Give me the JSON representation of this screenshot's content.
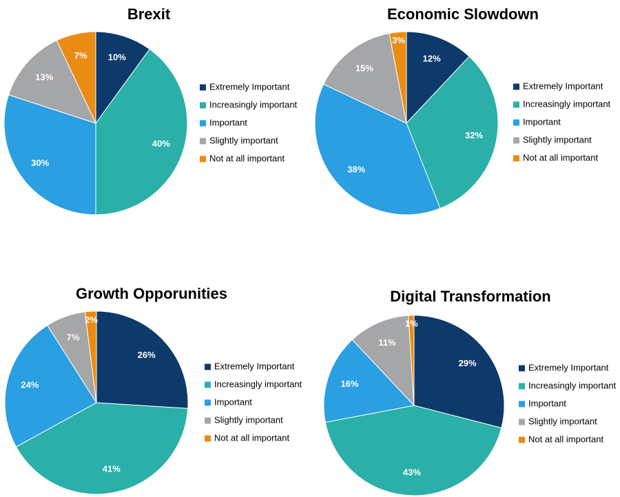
{
  "colors": {
    "extremely_important": "#0e3a6b",
    "increasingly_important": "#2ab0a8",
    "important": "#2a9fe2",
    "slightly_important": "#a5a6a8",
    "not_at_all_important": "#ea8c13"
  },
  "legend": [
    {
      "label": "Extremely Important",
      "color": "#0e3a6b"
    },
    {
      "label": "Increasingly important",
      "color": "#2ab0a8"
    },
    {
      "label": "Important",
      "color": "#2a9fe2"
    },
    {
      "label": "Slightly important",
      "color": "#a5a6a8"
    },
    {
      "label": "Not at all important",
      "color": "#ea8c13"
    }
  ],
  "chart_data": [
    {
      "type": "pie",
      "title": "Brexit",
      "legend_position": "right",
      "slices": [
        {
          "label": "Extremely Important",
          "value": 10,
          "display": "10%",
          "color": "#0e3a6b"
        },
        {
          "label": "Increasingly important",
          "value": 40,
          "display": "40%",
          "color": "#2ab0a8"
        },
        {
          "label": "Important",
          "value": 30,
          "display": "30%",
          "color": "#2a9fe2"
        },
        {
          "label": "Slightly important",
          "value": 13,
          "display": "13%",
          "color": "#a5a6a8"
        },
        {
          "label": "Not at all important",
          "value": 7,
          "display": "7%",
          "color": "#ea8c13"
        }
      ]
    },
    {
      "type": "pie",
      "title": "Economic Slowdown",
      "legend_position": "right",
      "slices": [
        {
          "label": "Extremely Important",
          "value": 12,
          "display": "12%",
          "color": "#0e3a6b"
        },
        {
          "label": "Increasingly important",
          "value": 32,
          "display": "32%",
          "color": "#2ab0a8"
        },
        {
          "label": "Important",
          "value": 38,
          "display": "38%",
          "color": "#2a9fe2"
        },
        {
          "label": "Slightly important",
          "value": 15,
          "display": "15%",
          "color": "#a5a6a8"
        },
        {
          "label": "Not at all important",
          "value": 3,
          "display": "3%",
          "color": "#ea8c13"
        }
      ]
    },
    {
      "type": "pie",
      "title": "Growth Opporunities",
      "legend_position": "right",
      "slices": [
        {
          "label": "Extremely Important",
          "value": 26,
          "display": "26%",
          "color": "#0e3a6b"
        },
        {
          "label": "Increasingly important",
          "value": 41,
          "display": "41%",
          "color": "#2ab0a8"
        },
        {
          "label": "Important",
          "value": 24,
          "display": "24%",
          "color": "#2a9fe2"
        },
        {
          "label": "Slightly important",
          "value": 7,
          "display": "7%",
          "color": "#a5a6a8"
        },
        {
          "label": "Not at all important",
          "value": 2,
          "display": "2%",
          "color": "#ea8c13"
        }
      ]
    },
    {
      "type": "pie",
      "title": "Digital Transformation",
      "legend_position": "right",
      "slices": [
        {
          "label": "Extremely Important",
          "value": 29,
          "display": "29%",
          "color": "#0e3a6b"
        },
        {
          "label": "Increasingly important",
          "value": 43,
          "display": "43%",
          "color": "#2ab0a8"
        },
        {
          "label": "Important",
          "value": 16,
          "display": "16%",
          "color": "#2a9fe2"
        },
        {
          "label": "Slightly important",
          "value": 11,
          "display": "11%",
          "color": "#a5a6a8"
        },
        {
          "label": "Not at all important",
          "value": 1,
          "display": "1%",
          "color": "#ea8c13"
        }
      ]
    }
  ]
}
